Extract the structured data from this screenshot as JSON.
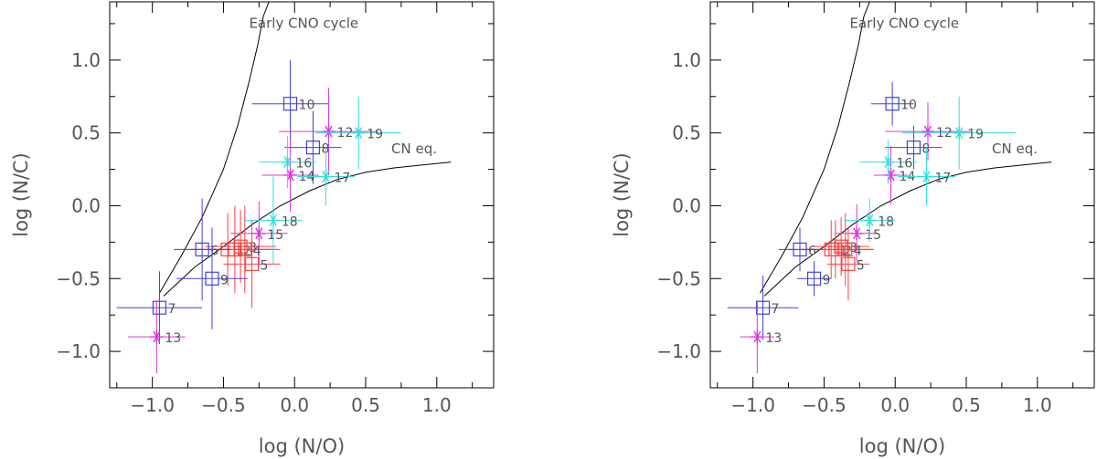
{
  "chart_data": [
    {
      "type": "scatter",
      "title": "",
      "xlabel": "log (N/O)",
      "ylabel": "log (N/C)",
      "xlim": [
        -1.3,
        1.4
      ],
      "ylim": [
        -1.25,
        1.4
      ],
      "xticks": [
        -1.0,
        -0.5,
        0.0,
        0.5,
        1.0
      ],
      "xtick_labels": [
        "−1.0",
        "−0.5",
        "0.0",
        "0.5",
        "1.0"
      ],
      "yticks": [
        -1.0,
        -0.5,
        0.0,
        0.5,
        1.0
      ],
      "ytick_labels": [
        "−1.0",
        "−0.5",
        "0.0",
        "0.5",
        "1.0"
      ],
      "annotations": [
        {
          "text": "Early CNO cycle",
          "x": -0.32,
          "y": 1.22
        },
        {
          "text": "CN eq.",
          "x": 0.68,
          "y": 0.36
        }
      ],
      "curves": [
        {
          "name": "early-cno",
          "x": [
            -0.95,
            -0.8,
            -0.65,
            -0.5,
            -0.4,
            -0.32,
            -0.26,
            -0.22,
            -0.18
          ],
          "y": [
            -0.6,
            -0.35,
            -0.08,
            0.25,
            0.55,
            0.85,
            1.1,
            1.3,
            1.4
          ]
        },
        {
          "name": "cn-eq",
          "x": [
            -0.92,
            -0.7,
            -0.5,
            -0.3,
            -0.1,
            0.1,
            0.3,
            0.5,
            0.7,
            0.9,
            1.1
          ],
          "y": [
            -0.62,
            -0.42,
            -0.28,
            -0.13,
            0.0,
            0.1,
            0.18,
            0.23,
            0.26,
            0.28,
            0.3
          ]
        }
      ],
      "points": [
        {
          "id": "1",
          "x": -0.47,
          "y": -0.3,
          "xerr": 0.3,
          "yerr": 0.25,
          "color": "#ff4040",
          "marker": "square"
        },
        {
          "id": "2",
          "x": -0.42,
          "y": -0.3,
          "xerr": 0.3,
          "yerr": 0.3,
          "color": "#ff4040",
          "marker": "square"
        },
        {
          "id": "3",
          "x": -0.38,
          "y": -0.28,
          "xerr": 0.25,
          "yerr": 0.25,
          "color": "#ff4040",
          "marker": "square"
        },
        {
          "id": "4",
          "x": -0.35,
          "y": -0.3,
          "xerr": 0.25,
          "yerr": 0.3,
          "color": "#ff4040",
          "marker": "square"
        },
        {
          "id": "5",
          "x": -0.3,
          "y": -0.4,
          "xerr": 0.2,
          "yerr": 0.3,
          "color": "#ff4040",
          "marker": "square"
        },
        {
          "id": "6",
          "x": -0.65,
          "y": -0.3,
          "xerr": 0.2,
          "yerr": 0.35,
          "color": "#4040e0",
          "marker": "square"
        },
        {
          "id": "7",
          "x": -0.95,
          "y": -0.7,
          "xerr": 0.3,
          "yerr": 0.25,
          "color": "#4040e0",
          "marker": "square"
        },
        {
          "id": "8",
          "x": 0.13,
          "y": 0.4,
          "xerr": 0.2,
          "yerr": 0.25,
          "color": "#4040e0",
          "marker": "square"
        },
        {
          "id": "9",
          "x": -0.58,
          "y": -0.5,
          "xerr": 0.25,
          "yerr": 0.35,
          "color": "#4040e0",
          "marker": "square"
        },
        {
          "id": "10",
          "x": -0.03,
          "y": 0.7,
          "xerr": 0.27,
          "yerr": 0.3,
          "color": "#4040e0",
          "marker": "square"
        },
        {
          "id": "12",
          "x": 0.24,
          "y": 0.51,
          "xerr": 0.35,
          "yerr": 0.3,
          "color": "#e030e0",
          "marker": "star"
        },
        {
          "id": "13",
          "x": -0.97,
          "y": -0.9,
          "xerr": 0.2,
          "yerr": 0.25,
          "color": "#e030e0",
          "marker": "star"
        },
        {
          "id": "14",
          "x": -0.03,
          "y": 0.21,
          "xerr": 0.2,
          "yerr": 0.25,
          "color": "#e030e0",
          "marker": "star"
        },
        {
          "id": "15",
          "x": -0.25,
          "y": -0.19,
          "xerr": 0.2,
          "yerr": 0.22,
          "color": "#e030e0",
          "marker": "star"
        },
        {
          "id": "16",
          "x": -0.05,
          "y": 0.3,
          "xerr": 0.2,
          "yerr": 0.18,
          "color": "#30e0e0",
          "marker": "star"
        },
        {
          "id": "17",
          "x": 0.22,
          "y": 0.2,
          "xerr": 0.2,
          "yerr": 0.2,
          "color": "#30e0e0",
          "marker": "star"
        },
        {
          "id": "18",
          "x": -0.15,
          "y": -0.1,
          "xerr": 0.2,
          "yerr": 0.3,
          "color": "#30e0e0",
          "marker": "star"
        },
        {
          "id": "19",
          "x": 0.45,
          "y": 0.5,
          "xerr": 0.3,
          "yerr": 0.25,
          "color": "#30e0e0",
          "marker": "star"
        }
      ]
    },
    {
      "type": "scatter",
      "title": "",
      "xlabel": "log (N/O)",
      "ylabel": "log (N/C)",
      "xlim": [
        -1.3,
        1.4
      ],
      "ylim": [
        -1.25,
        1.4
      ],
      "xticks": [
        -1.0,
        -0.5,
        0.0,
        0.5,
        1.0
      ],
      "xtick_labels": [
        "−1.0",
        "−0.5",
        "0.0",
        "0.5",
        "1.0"
      ],
      "yticks": [
        -1.0,
        -0.5,
        0.0,
        0.5,
        1.0
      ],
      "ytick_labels": [
        "−1.0",
        "−0.5",
        "0.0",
        "0.5",
        "1.0"
      ],
      "annotations": [
        {
          "text": "Early CNO cycle",
          "x": -0.32,
          "y": 1.22
        },
        {
          "text": "CN eq.",
          "x": 0.68,
          "y": 0.36
        }
      ],
      "curves": [
        {
          "name": "early-cno",
          "x": [
            -0.95,
            -0.8,
            -0.65,
            -0.5,
            -0.4,
            -0.32,
            -0.26,
            -0.22,
            -0.18
          ],
          "y": [
            -0.6,
            -0.35,
            -0.08,
            0.25,
            0.55,
            0.85,
            1.1,
            1.3,
            1.4
          ]
        },
        {
          "name": "cn-eq",
          "x": [
            -0.92,
            -0.7,
            -0.5,
            -0.3,
            -0.1,
            0.1,
            0.3,
            0.5,
            0.7,
            0.9,
            1.1
          ],
          "y": [
            -0.62,
            -0.42,
            -0.28,
            -0.13,
            0.0,
            0.1,
            0.18,
            0.23,
            0.26,
            0.28,
            0.3
          ]
        }
      ],
      "points": [
        {
          "id": "1",
          "x": -0.45,
          "y": -0.3,
          "xerr": 0.3,
          "yerr": 0.2,
          "color": "#ff4040",
          "marker": "square"
        },
        {
          "id": "2",
          "x": -0.42,
          "y": -0.3,
          "xerr": 0.25,
          "yerr": 0.2,
          "color": "#ff4040",
          "marker": "square"
        },
        {
          "id": "3",
          "x": -0.38,
          "y": -0.28,
          "xerr": 0.2,
          "yerr": 0.2,
          "color": "#ff4040",
          "marker": "square"
        },
        {
          "id": "4",
          "x": -0.35,
          "y": -0.3,
          "xerr": 0.2,
          "yerr": 0.25,
          "color": "#ff4040",
          "marker": "square"
        },
        {
          "id": "5",
          "x": -0.33,
          "y": -0.4,
          "xerr": 0.15,
          "yerr": 0.25,
          "color": "#ff4040",
          "marker": "square"
        },
        {
          "id": "6",
          "x": -0.67,
          "y": -0.3,
          "xerr": 0.15,
          "yerr": 0.15,
          "color": "#4040e0",
          "marker": "square"
        },
        {
          "id": "7",
          "x": -0.93,
          "y": -0.7,
          "xerr": 0.25,
          "yerr": 0.22,
          "color": "#4040e0",
          "marker": "square"
        },
        {
          "id": "8",
          "x": 0.13,
          "y": 0.4,
          "xerr": 0.2,
          "yerr": 0.15,
          "color": "#4040e0",
          "marker": "square"
        },
        {
          "id": "9",
          "x": -0.57,
          "y": -0.5,
          "xerr": 0.12,
          "yerr": 0.12,
          "color": "#4040e0",
          "marker": "square"
        },
        {
          "id": "10",
          "x": -0.02,
          "y": 0.7,
          "xerr": 0.15,
          "yerr": 0.15,
          "color": "#4040e0",
          "marker": "square"
        },
        {
          "id": "12",
          "x": 0.23,
          "y": 0.51,
          "xerr": 0.3,
          "yerr": 0.2,
          "color": "#e030e0",
          "marker": "star"
        },
        {
          "id": "13",
          "x": -0.97,
          "y": -0.9,
          "xerr": 0.12,
          "yerr": 0.25,
          "color": "#e030e0",
          "marker": "star"
        },
        {
          "id": "14",
          "x": -0.03,
          "y": 0.21,
          "xerr": 0.12,
          "yerr": 0.2,
          "color": "#e030e0",
          "marker": "star"
        },
        {
          "id": "15",
          "x": -0.27,
          "y": -0.19,
          "xerr": 0.15,
          "yerr": 0.2,
          "color": "#e030e0",
          "marker": "star"
        },
        {
          "id": "16",
          "x": -0.05,
          "y": 0.3,
          "xerr": 0.2,
          "yerr": 0.15,
          "color": "#30e0e0",
          "marker": "star"
        },
        {
          "id": "17",
          "x": 0.22,
          "y": 0.2,
          "xerr": 0.2,
          "yerr": 0.2,
          "color": "#30e0e0",
          "marker": "star"
        },
        {
          "id": "18",
          "x": -0.18,
          "y": -0.1,
          "xerr": 0.18,
          "yerr": 0.15,
          "color": "#30e0e0",
          "marker": "star"
        },
        {
          "id": "19",
          "x": 0.45,
          "y": 0.5,
          "xerr": 0.4,
          "yerr": 0.25,
          "color": "#30e0e0",
          "marker": "star"
        }
      ]
    }
  ]
}
